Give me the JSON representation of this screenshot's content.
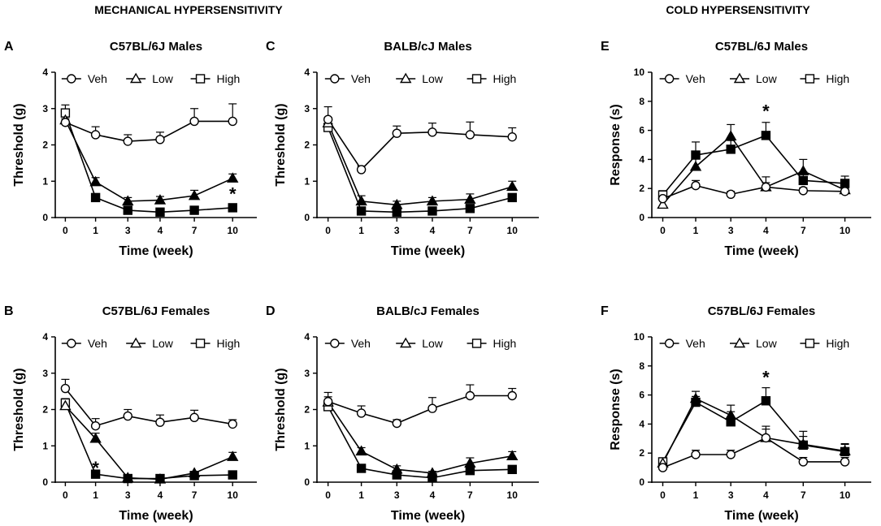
{
  "sections": {
    "mechanical": "MECHANICAL HYPERSENSITIVITY",
    "cold": "COLD HYPERSENSITIVITY"
  },
  "chart_data": [
    {
      "letter": "A",
      "type": "line",
      "title": "C57BL/6J Males",
      "xlabel": "Time (week)",
      "ylabel": "Threshold (g)",
      "categories": [
        "0",
        "1",
        "3",
        "4",
        "7",
        "10"
      ],
      "ylim": [
        0,
        4
      ],
      "yticks": [
        "0",
        "1",
        "2",
        "3",
        "4"
      ],
      "legend": [
        "Veh",
        "Low",
        "High"
      ],
      "series": [
        {
          "name": "Veh",
          "marker": "circle",
          "values": [
            2.62,
            2.28,
            2.1,
            2.15,
            2.65,
            2.65
          ],
          "errors": [
            0.1,
            0.22,
            0.18,
            0.2,
            0.35,
            0.48
          ]
        },
        {
          "name": "Low",
          "marker": "triangle",
          "values": [
            2.68,
            0.98,
            0.45,
            0.48,
            0.6,
            1.08
          ],
          "errors": [
            0.12,
            0.12,
            0.1,
            0.1,
            0.15,
            0.12
          ]
        },
        {
          "name": "High",
          "marker": "square",
          "values": [
            2.88,
            0.55,
            0.2,
            0.15,
            0.2,
            0.27
          ],
          "errors": [
            0.22,
            0.05,
            0.03,
            0.03,
            0.03,
            0.04
          ]
        }
      ],
      "annotations": [
        {
          "text": "*",
          "x": "10",
          "y": 0.68
        }
      ]
    },
    {
      "letter": "C",
      "type": "line",
      "title": "BALB/cJ Males",
      "xlabel": "Time (week)",
      "ylabel": "Threshold (g)",
      "categories": [
        "0",
        "1",
        "3",
        "4",
        "7",
        "10"
      ],
      "ylim": [
        0,
        4
      ],
      "yticks": [
        "0",
        "1",
        "2",
        "3",
        "4"
      ],
      "legend": [
        "Veh",
        "Low",
        "High"
      ],
      "series": [
        {
          "name": "Veh",
          "marker": "circle",
          "values": [
            2.7,
            1.32,
            2.32,
            2.35,
            2.28,
            2.22
          ],
          "errors": [
            0.35,
            0.1,
            0.2,
            0.25,
            0.35,
            0.25
          ]
        },
        {
          "name": "Low",
          "marker": "triangle",
          "values": [
            2.6,
            0.45,
            0.35,
            0.45,
            0.5,
            0.85
          ],
          "errors": [
            0.15,
            0.15,
            0.1,
            0.1,
            0.15,
            0.15
          ]
        },
        {
          "name": "High",
          "marker": "square",
          "values": [
            2.48,
            0.18,
            0.15,
            0.18,
            0.25,
            0.55
          ],
          "errors": [
            0.1,
            0.05,
            0.05,
            0.05,
            0.05,
            0.1
          ]
        }
      ],
      "annotations": []
    },
    {
      "letter": "E",
      "type": "line",
      "title": "C57BL/6J Males",
      "xlabel": "Time (week)",
      "ylabel": "Response (s)",
      "categories": [
        "0",
        "1",
        "3",
        "4",
        "7",
        "10"
      ],
      "ylim": [
        0,
        10
      ],
      "yticks": [
        "0",
        "2",
        "4",
        "6",
        "8",
        "10"
      ],
      "legend": [
        "Veh",
        "Low",
        "High"
      ],
      "series": [
        {
          "name": "Veh",
          "marker": "circle",
          "values": [
            1.3,
            2.2,
            1.6,
            2.1,
            1.85,
            1.8
          ],
          "errors": [
            0.2,
            0.35,
            0.2,
            0.3,
            0.2,
            0.2
          ]
        },
        {
          "name": "Low",
          "marker": "triangle",
          "values": [
            0.9,
            3.5,
            5.6,
            2.1,
            3.2,
            1.9
          ],
          "errors": [
            0.3,
            0.6,
            0.8,
            0.7,
            0.8,
            0.5
          ]
        },
        {
          "name": "High",
          "marker": "square",
          "values": [
            1.55,
            4.3,
            4.7,
            5.65,
            2.55,
            2.35
          ],
          "errors": [
            0.3,
            0.9,
            0.6,
            0.9,
            0.6,
            0.5
          ]
        }
      ],
      "annotations": [
        {
          "text": "*",
          "x": "4",
          "y": 7.4
        }
      ]
    },
    {
      "letter": "B",
      "type": "line",
      "title": "C57BL/6J Females",
      "xlabel": "Time (week)",
      "ylabel": "Threshold (g)",
      "categories": [
        "0",
        "1",
        "3",
        "4",
        "7",
        "10"
      ],
      "ylim": [
        0,
        4
      ],
      "yticks": [
        "0",
        "1",
        "2",
        "3",
        "4"
      ],
      "legend": [
        "Veh",
        "Low",
        "High"
      ],
      "series": [
        {
          "name": "Veh",
          "marker": "circle",
          "values": [
            2.58,
            1.55,
            1.82,
            1.65,
            1.78,
            1.6
          ],
          "errors": [
            0.25,
            0.2,
            0.18,
            0.2,
            0.2,
            0.12
          ]
        },
        {
          "name": "Low",
          "marker": "triangle",
          "values": [
            2.1,
            1.2,
            0.12,
            0.08,
            0.25,
            0.7
          ],
          "errors": [
            0.15,
            0.15,
            0.05,
            0.05,
            0.05,
            0.12
          ]
        },
        {
          "name": "High",
          "marker": "square",
          "values": [
            2.18,
            0.22,
            0.1,
            0.1,
            0.18,
            0.2
          ],
          "errors": [
            0.12,
            0.05,
            0.03,
            0.03,
            0.03,
            0.05
          ]
        }
      ],
      "annotations": [
        {
          "text": "*",
          "x": "1",
          "y": 0.42
        }
      ]
    },
    {
      "letter": "D",
      "type": "line",
      "title": "BALB/cJ Females",
      "xlabel": "Time (week)",
      "ylabel": "Threshold (g)",
      "categories": [
        "0",
        "1",
        "3",
        "4",
        "7",
        "10"
      ],
      "ylim": [
        0,
        4
      ],
      "yticks": [
        "0",
        "1",
        "2",
        "3",
        "4"
      ],
      "legend": [
        "Veh",
        "Low",
        "High"
      ],
      "series": [
        {
          "name": "Veh",
          "marker": "circle",
          "values": [
            2.22,
            1.9,
            1.62,
            2.03,
            2.38,
            2.38
          ],
          "errors": [
            0.25,
            0.2,
            0.1,
            0.3,
            0.3,
            0.2
          ]
        },
        {
          "name": "Low",
          "marker": "triangle",
          "values": [
            2.2,
            0.85,
            0.35,
            0.25,
            0.52,
            0.72
          ],
          "errors": [
            0.15,
            0.1,
            0.1,
            0.05,
            0.15,
            0.12
          ]
        },
        {
          "name": "High",
          "marker": "square",
          "values": [
            2.08,
            0.38,
            0.2,
            0.12,
            0.32,
            0.35
          ],
          "errors": [
            0.1,
            0.05,
            0.05,
            0.05,
            0.1,
            0.05
          ]
        }
      ],
      "annotations": []
    },
    {
      "letter": "F",
      "type": "line",
      "title": "C57BL/6J Females",
      "xlabel": "Time (week)",
      "ylabel": "Response (s)",
      "categories": [
        "0",
        "1",
        "3",
        "4",
        "7",
        "10"
      ],
      "ylim": [
        0,
        10
      ],
      "yticks": [
        "0",
        "2",
        "4",
        "6",
        "8",
        "10"
      ],
      "legend": [
        "Veh",
        "Low",
        "High"
      ],
      "series": [
        {
          "name": "Veh",
          "marker": "circle",
          "values": [
            1.0,
            1.9,
            1.9,
            3.05,
            1.4,
            1.4
          ],
          "errors": [
            0.2,
            0.3,
            0.3,
            0.8,
            0.3,
            0.3
          ]
        },
        {
          "name": "Low",
          "marker": "triangle",
          "values": [
            1.3,
            5.75,
            4.6,
            3.05,
            2.6,
            2.15
          ],
          "errors": [
            0.25,
            0.5,
            0.7,
            0.6,
            0.9,
            0.5
          ]
        },
        {
          "name": "High",
          "marker": "square",
          "values": [
            1.4,
            5.5,
            4.15,
            5.6,
            2.55,
            2.1
          ],
          "errors": [
            0.25,
            0.4,
            0.7,
            0.9,
            0.6,
            0.5
          ]
        }
      ],
      "annotations": [
        {
          "text": "*",
          "x": "4",
          "y": 7.3
        }
      ]
    }
  ]
}
